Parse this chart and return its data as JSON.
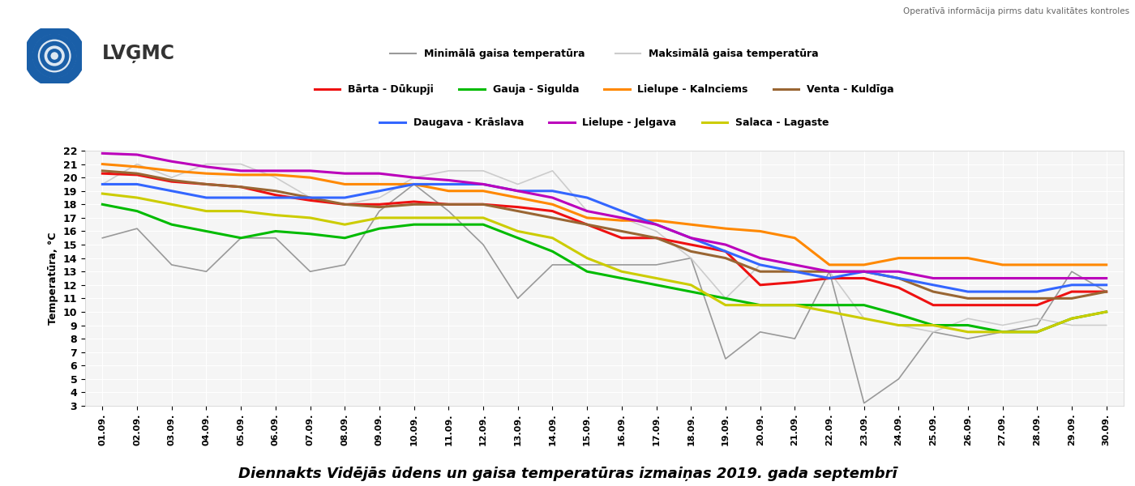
{
  "title": "Diennakts Vidējās ūdens un gaisa temperatūras izmaiņas 2019. gada septembrī",
  "ylabel": "Temperatūra, °C",
  "subtitle": "Operatīvā informācija pirms datu kvalitātes kontroles",
  "x_labels": [
    "01.09.",
    "02.09.",
    "03.09.",
    "04.09.",
    "05.09.",
    "06.09.",
    "07.09.",
    "08.09.",
    "09.09.",
    "10.09.",
    "11.09.",
    "12.09.",
    "13.09.",
    "14.09.",
    "15.09.",
    "16.09.",
    "17.09.",
    "18.09.",
    "19.09.",
    "20.09.",
    "21.09.",
    "22.09.",
    "23.09.",
    "24.09.",
    "25.09.",
    "26.09.",
    "27.09.",
    "28.09.",
    "29.09.",
    "30.09."
  ],
  "ylim": [
    3,
    22
  ],
  "yticks": [
    3,
    4,
    5,
    6,
    7,
    8,
    9,
    10,
    11,
    12,
    13,
    14,
    15,
    16,
    17,
    18,
    19,
    20,
    21,
    22
  ],
  "series_order": [
    "Minimālā gaisa temperatūra",
    "Maksimālā gaisa temperatūra",
    "Bārta - Dūkupji",
    "Gauja - Sigulda",
    "Lielupe - Kalnciems",
    "Venta - Kuldīga",
    "Daugava - Krāslava",
    "Lielupe - Jelgava",
    "Salaca - Lagaste"
  ],
  "series": {
    "Minimālā gaisa temperatūra": {
      "color": "#999999",
      "linewidth": 1.2,
      "values": [
        15.5,
        16.2,
        13.5,
        13.0,
        15.5,
        15.5,
        13.0,
        13.5,
        17.5,
        19.5,
        17.5,
        15.0,
        11.0,
        13.5,
        13.5,
        13.5,
        13.5,
        14.0,
        6.5,
        8.5,
        8.0,
        13.0,
        3.2,
        5.0,
        8.5,
        8.0,
        8.5,
        9.0,
        13.0,
        11.5
      ]
    },
    "Maksimālā gaisa temperatūra": {
      "color": "#cccccc",
      "linewidth": 1.2,
      "values": [
        19.5,
        21.0,
        20.0,
        21.0,
        21.0,
        20.0,
        18.5,
        18.0,
        18.5,
        20.0,
        20.5,
        20.5,
        19.5,
        20.5,
        17.5,
        17.0,
        16.0,
        14.0,
        11.0,
        13.5,
        13.0,
        13.0,
        9.5,
        9.0,
        8.5,
        9.5,
        9.0,
        9.5,
        9.0,
        9.0
      ]
    },
    "Bārta - Dūkupji": {
      "color": "#ee1111",
      "linewidth": 2.2,
      "values": [
        20.3,
        20.2,
        19.7,
        19.5,
        19.3,
        18.7,
        18.3,
        18.0,
        18.0,
        18.2,
        18.0,
        18.0,
        17.8,
        17.5,
        16.5,
        15.5,
        15.5,
        15.0,
        14.5,
        12.0,
        12.2,
        12.5,
        12.5,
        11.8,
        10.5,
        10.5,
        10.5,
        10.5,
        11.5,
        11.5
      ]
    },
    "Gauja - Sigulda": {
      "color": "#00bb00",
      "linewidth": 2.2,
      "values": [
        18.0,
        17.5,
        16.5,
        16.0,
        15.5,
        16.0,
        15.8,
        15.5,
        16.2,
        16.5,
        16.5,
        16.5,
        15.5,
        14.5,
        13.0,
        12.5,
        12.0,
        11.5,
        11.0,
        10.5,
        10.5,
        10.5,
        10.5,
        9.8,
        9.0,
        9.0,
        8.5,
        8.5,
        9.5,
        10.0
      ]
    },
    "Lielupe - Kalnciems": {
      "color": "#ff8800",
      "linewidth": 2.2,
      "values": [
        21.0,
        20.8,
        20.5,
        20.3,
        20.2,
        20.2,
        20.0,
        19.5,
        19.5,
        19.5,
        19.0,
        19.0,
        18.5,
        18.0,
        17.0,
        16.8,
        16.8,
        16.5,
        16.2,
        16.0,
        15.5,
        13.5,
        13.5,
        14.0,
        14.0,
        14.0,
        13.5,
        13.5,
        13.5,
        13.5
      ]
    },
    "Venta - Kuldīga": {
      "color": "#996633",
      "linewidth": 2.2,
      "values": [
        20.5,
        20.3,
        19.8,
        19.5,
        19.3,
        19.0,
        18.5,
        18.0,
        17.8,
        18.0,
        18.0,
        18.0,
        17.5,
        17.0,
        16.5,
        16.0,
        15.5,
        14.5,
        14.0,
        13.0,
        13.0,
        13.0,
        13.0,
        12.5,
        11.5,
        11.0,
        11.0,
        11.0,
        11.0,
        11.5
      ]
    },
    "Daugava - Krāslava": {
      "color": "#3366ff",
      "linewidth": 2.2,
      "values": [
        19.5,
        19.5,
        19.0,
        18.5,
        18.5,
        18.5,
        18.5,
        18.5,
        19.0,
        19.5,
        19.5,
        19.5,
        19.0,
        19.0,
        18.5,
        17.5,
        16.5,
        15.5,
        14.5,
        13.5,
        13.0,
        12.5,
        13.0,
        12.5,
        12.0,
        11.5,
        11.5,
        11.5,
        12.0,
        12.0
      ]
    },
    "Lielupe - Jelgava": {
      "color": "#bb00bb",
      "linewidth": 2.2,
      "values": [
        21.8,
        21.7,
        21.2,
        20.8,
        20.5,
        20.5,
        20.5,
        20.3,
        20.3,
        20.0,
        19.8,
        19.5,
        19.0,
        18.5,
        17.5,
        17.0,
        16.5,
        15.5,
        15.0,
        14.0,
        13.5,
        13.0,
        13.0,
        13.0,
        12.5,
        12.5,
        12.5,
        12.5,
        12.5,
        12.5
      ]
    },
    "Salaca - Lagaste": {
      "color": "#cccc00",
      "linewidth": 2.2,
      "values": [
        18.8,
        18.5,
        18.0,
        17.5,
        17.5,
        17.2,
        17.0,
        16.5,
        17.0,
        17.0,
        17.0,
        17.0,
        16.0,
        15.5,
        14.0,
        13.0,
        12.5,
        12.0,
        10.5,
        10.5,
        10.5,
        10.0,
        9.5,
        9.0,
        9.0,
        8.5,
        8.5,
        8.5,
        9.5,
        10.0
      ]
    }
  },
  "background_color": "#ffffff",
  "plot_bg_color": "#f5f5f5",
  "legend_air": [
    [
      "Minimālā gaisa temperatūra",
      "#999999"
    ],
    [
      "Maksimālā gaisa temperatūra",
      "#cccccc"
    ]
  ],
  "legend_water_row1": [
    [
      "Bārta - Dūkupji",
      "#ee1111"
    ],
    [
      "Gauja - Sigulda",
      "#00bb00"
    ],
    [
      "Lielupe - Kalnciems",
      "#ff8800"
    ],
    [
      "Venta - Kuldīga",
      "#996633"
    ]
  ],
  "legend_water_row2": [
    [
      "Daugava - Krāslava",
      "#3366ff"
    ],
    [
      "Lielupe - Jelgava",
      "#bb00bb"
    ],
    [
      "Salaca - Lagaste",
      "#cccc00"
    ]
  ]
}
